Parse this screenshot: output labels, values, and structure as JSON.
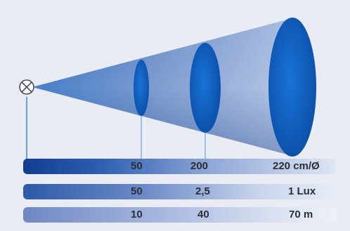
{
  "rows": [
    {
      "v1": "50",
      "v2": "200",
      "v3": "220 cm/Ø"
    },
    {
      "v1": "50",
      "v2": "2,5",
      "v3": "1 Lux"
    },
    {
      "v1": "10",
      "v2": "40",
      "v3": "70 m"
    }
  ],
  "colors": {
    "cone_dark": "#0d56b5",
    "cone_light": "#8aa3d2",
    "ellipse": "#0f63c4",
    "guide": "#6aa6dc",
    "background": "#e9edf3"
  }
}
